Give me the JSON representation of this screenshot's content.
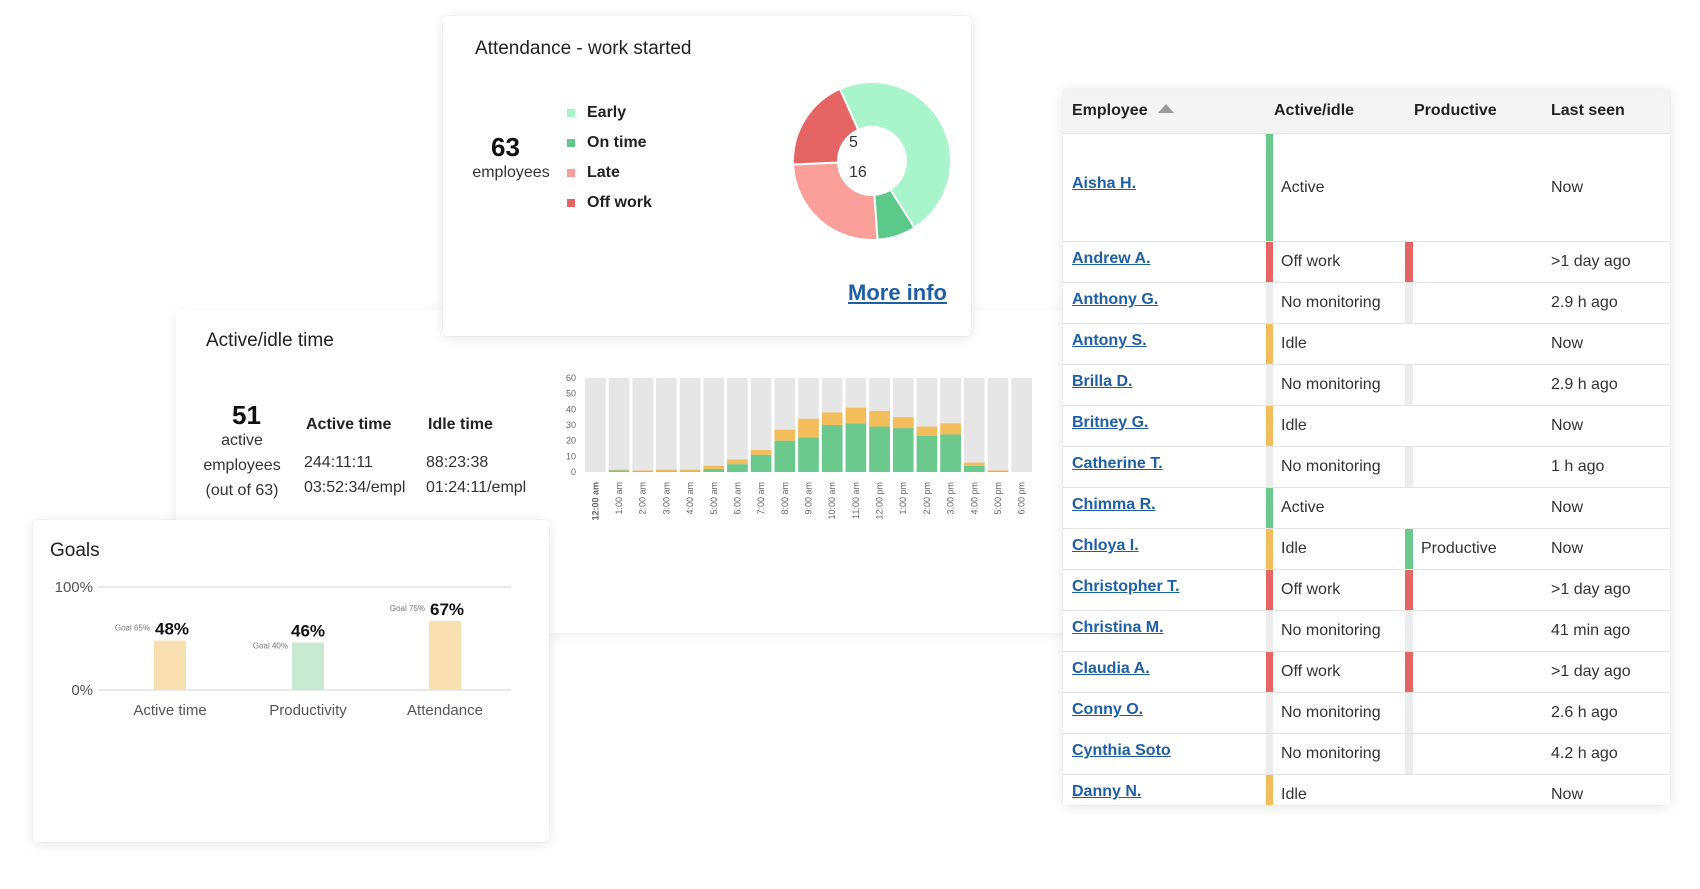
{
  "colors": {
    "early": "#a8f5cc",
    "on_time": "#5cc98a",
    "late": "#fa9f99",
    "off_work": "#e56464",
    "active": "#6cc98e",
    "idle": "#f3bd5c",
    "no_monitoring": "#ececec",
    "link": "#1f5fa8"
  },
  "active_idle": {
    "title": "Active/idle time",
    "active_count": "51",
    "active_label_1": "active",
    "active_label_2": "employees",
    "active_label_3": "(out of 63)",
    "col_active": "Active time",
    "col_idle": "Idle time",
    "active_total": "244:11:11",
    "active_per": "03:52:34/empl",
    "idle_total": "88:23:38",
    "idle_per": "01:24:11/empl"
  },
  "attendance": {
    "title": "Attendance - work started",
    "total": "63",
    "total_label": "employees",
    "legend": [
      {
        "label": "Early",
        "count": "30",
        "color_key": "early"
      },
      {
        "label": "On time",
        "count": "5",
        "color_key": "on_time"
      },
      {
        "label": "Late",
        "count": "16",
        "color_key": "late"
      },
      {
        "label": "Off work",
        "count": "12",
        "color_key": "off_work"
      }
    ],
    "more_info": "More info"
  },
  "goals": {
    "title": "Goals"
  },
  "chart_data": [
    {
      "type": "bar",
      "stacked": true,
      "categories": [
        "12:00 am",
        "1:00 am",
        "2:00 am",
        "3:00 am",
        "4:00 am",
        "5:00 am",
        "6:00 am",
        "7:00 am",
        "8:00 am",
        "9:00 am",
        "10:00 am",
        "11:00 am",
        "12:00 pm",
        "1:00 pm",
        "2:00 pm",
        "3:00 pm",
        "4:00 pm",
        "5:00 pm",
        "6:00 pm"
      ],
      "series": [
        {
          "key": "active",
          "values": [
            0,
            1,
            0.5,
            0.5,
            0.5,
            2,
            5,
            11,
            20,
            22,
            30,
            31,
            29,
            28,
            23,
            24,
            4,
            0.5,
            0
          ]
        },
        {
          "key": "idle",
          "values": [
            0,
            0.5,
            0.5,
            1,
            1,
            2,
            3,
            3,
            7,
            12,
            8,
            10,
            10,
            7,
            6,
            7,
            2,
            0.5,
            0
          ]
        }
      ],
      "ylim": [
        0,
        60
      ],
      "yticks": [
        0,
        10,
        20,
        30,
        40,
        50,
        60
      ]
    },
    {
      "type": "pie",
      "donut": true,
      "labels": [
        "Early",
        "On time",
        "Late",
        "Off work"
      ],
      "values": [
        30,
        5,
        16,
        12
      ]
    },
    {
      "type": "bar",
      "categories": [
        "Active time",
        "Productivity",
        "Attendance"
      ],
      "values": [
        48,
        46,
        67
      ],
      "value_labels": [
        "48%",
        "46%",
        "67%"
      ],
      "goals": [
        65,
        40,
        75
      ],
      "goal_labels": [
        "Goal 65%",
        "Goal 40%",
        "Goal 75%"
      ],
      "bar_colors": [
        "#f8deb0",
        "#c8ead3",
        "#f8deb0"
      ],
      "yticks": [
        "0%",
        "100%"
      ],
      "ylim": [
        0,
        100
      ]
    }
  ],
  "table": {
    "headers": {
      "employee": "Employee",
      "active_idle": "Active/idle",
      "productive": "Productive",
      "last_seen": "Last seen"
    },
    "rows": [
      {
        "name": "Aisha H.",
        "status": "Active",
        "status_color": "active",
        "productive": "",
        "prod_color": "",
        "last_seen": "Now",
        "tall": true
      },
      {
        "name": "Andrew A.",
        "status": "Off work",
        "status_color": "off_work",
        "productive": "",
        "prod_color": "off_work",
        "last_seen": ">1 day ago"
      },
      {
        "name": "Anthony G.",
        "status": "No monitoring",
        "status_color": "no_monitoring",
        "productive": "",
        "prod_color": "no_monitoring",
        "last_seen": "2.9 h ago"
      },
      {
        "name": "Antony S.",
        "status": "Idle",
        "status_color": "idle",
        "productive": "",
        "prod_color": "",
        "last_seen": "Now"
      },
      {
        "name": "Brilla D.",
        "status": "No monitoring",
        "status_color": "no_monitoring",
        "productive": "",
        "prod_color": "no_monitoring",
        "last_seen": "2.9 h ago"
      },
      {
        "name": "Britney G.",
        "status": "Idle",
        "status_color": "idle",
        "productive": "",
        "prod_color": "",
        "last_seen": "Now"
      },
      {
        "name": "Catherine T.",
        "status": "No monitoring",
        "status_color": "no_monitoring",
        "productive": "",
        "prod_color": "no_monitoring",
        "last_seen": "1 h ago"
      },
      {
        "name": "Chimma R.",
        "status": "Active",
        "status_color": "active",
        "productive": "",
        "prod_color": "",
        "last_seen": "Now"
      },
      {
        "name": "Chloya I.",
        "status": "Idle",
        "status_color": "idle",
        "productive": "Productive",
        "prod_color": "active",
        "last_seen": "Now"
      },
      {
        "name": "Christopher T.",
        "status": "Off work",
        "status_color": "off_work",
        "productive": "",
        "prod_color": "off_work",
        "last_seen": ">1 day ago"
      },
      {
        "name": "Christina M.",
        "status": "No monitoring",
        "status_color": "no_monitoring",
        "productive": "",
        "prod_color": "no_monitoring",
        "last_seen": "41 min ago"
      },
      {
        "name": "Claudia A.",
        "status": "Off work",
        "status_color": "off_work",
        "productive": "",
        "prod_color": "off_work",
        "last_seen": ">1 day ago"
      },
      {
        "name": "Conny O.",
        "status": "No monitoring",
        "status_color": "no_monitoring",
        "productive": "",
        "prod_color": "no_monitoring",
        "last_seen": "2.6 h ago"
      },
      {
        "name": "Cynthia Soto",
        "status": "No monitoring",
        "status_color": "no_monitoring",
        "productive": "",
        "prod_color": "no_monitoring",
        "last_seen": "4.2 h ago"
      },
      {
        "name": "Danny N.",
        "status": "Idle",
        "status_color": "idle",
        "productive": "",
        "prod_color": "",
        "last_seen": "Now"
      }
    ]
  }
}
